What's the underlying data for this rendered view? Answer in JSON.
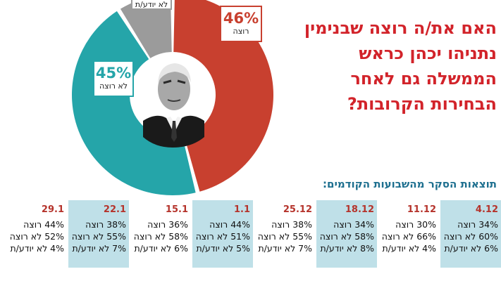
{
  "chart_data": [
    {
      "type": "pie",
      "title": "האם את/ה רוצה שבנימין נתניהו יכהן כראש הממשלה גם לאחר הבחירות הקרובות?",
      "slices": [
        {
          "label": "רוצה",
          "value": 46,
          "display": "46%",
          "color": "#c8402f"
        },
        {
          "label": "לא רוצה",
          "value": 45,
          "display": "45%",
          "color": "#25a5a9"
        },
        {
          "label": "לא יודע/ת",
          "value": 9,
          "display": "",
          "color": "#9b9b9b"
        }
      ]
    },
    {
      "type": "table",
      "title": "תוצאות הסקר מהשבועות הקודמים:",
      "columns": [
        {
          "date": "4.12",
          "lines": [
            "34% רוצה",
            "60% לא רוצה",
            "6% לא יודע/ת"
          ],
          "shaded": true
        },
        {
          "date": "11.12",
          "lines": [
            "30% רוצה",
            "66% לא רוצה",
            "4% לא יודע/ת"
          ],
          "shaded": false
        },
        {
          "date": "18.12",
          "lines": [
            "34% רוצה",
            "58% לא רוצה",
            "8% לא יודע/ת"
          ],
          "shaded": true
        },
        {
          "date": "25.12",
          "lines": [
            "38% רוצה",
            "55% לא רוצה",
            "7% לא יודע/ת"
          ],
          "shaded": false
        },
        {
          "date": "1.1",
          "lines": [
            "44% רוצה",
            "51% לא רוצה",
            "5% לא יודע/ת"
          ],
          "shaded": true
        },
        {
          "date": "15.1",
          "lines": [
            "36% רוצה",
            "58% לא רוצה",
            "6% לא יודע/ת"
          ],
          "shaded": false
        },
        {
          "date": "22.1",
          "lines": [
            "38% רוצה",
            "55% לא רוצה",
            "7% לא יודע/ת"
          ],
          "shaded": true
        },
        {
          "date": "29.1",
          "lines": [
            "44% רוצה",
            "52% לא רוצה",
            "4% לא יודע/ת"
          ],
          "shaded": false
        }
      ]
    }
  ],
  "labels": {
    "yes_pct": "46%",
    "yes_text": "רוצה",
    "no_pct": "45%",
    "no_text": "לא רוצה",
    "dk_text": "לא יודע/ת"
  },
  "headline": "האם את/ה רוצה שבנימין נתניהו יכהן כראש הממשלה גם לאחר הבחירות הקרובות?",
  "prev_title": "תוצאות הסקר מהשבועות הקודמים:",
  "icons": {
    "portrait": "portrait-photo"
  }
}
